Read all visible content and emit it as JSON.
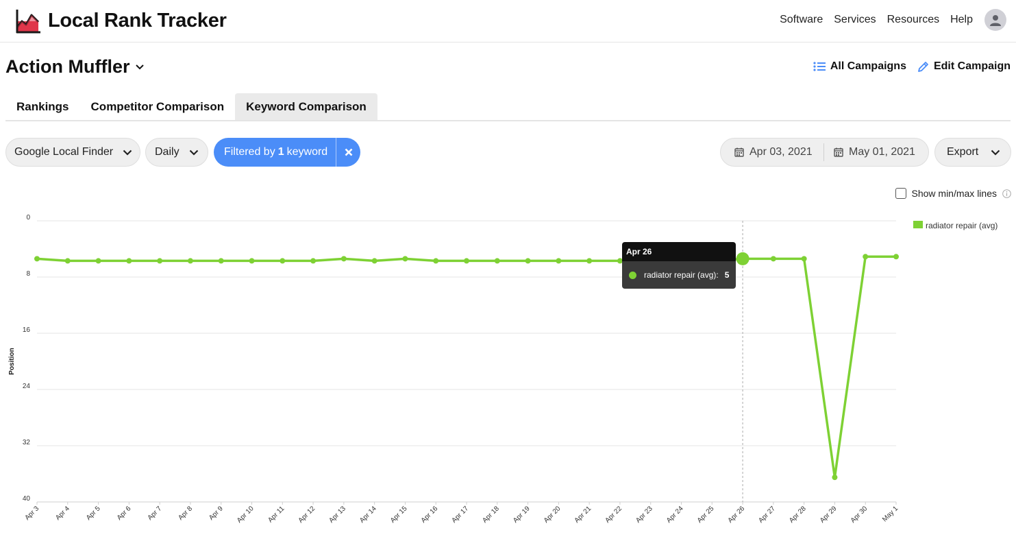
{
  "header": {
    "brand_name": "Local Rank Tracker",
    "nav": [
      {
        "label": "Software"
      },
      {
        "label": "Services"
      },
      {
        "label": "Resources"
      },
      {
        "label": "Help"
      }
    ]
  },
  "campaign": {
    "title": "Action Muffler",
    "all_campaigns_label": "All Campaigns",
    "edit_campaign_label": "Edit Campaign"
  },
  "tabs": [
    {
      "label": "Rankings",
      "active": false
    },
    {
      "label": "Competitor Comparison",
      "active": false
    },
    {
      "label": "Keyword Comparison",
      "active": true
    }
  ],
  "filters": {
    "engine": "Google Local Finder",
    "frequency": "Daily",
    "filter_prefix": "Filtered by",
    "filter_count": "1",
    "filter_suffix": "keyword",
    "date_start": "Apr 03, 2021",
    "date_end": "May 01, 2021",
    "export_label": "Export"
  },
  "options": {
    "show_minmax_label": "Show min/max lines",
    "show_minmax_checked": false
  },
  "colors": {
    "accent": "#4b8df8",
    "series": "#7ed134"
  },
  "tooltip": {
    "date": "Apr 26",
    "series_label": "radiator repair (avg):",
    "value": "5"
  },
  "chart_data": {
    "type": "line",
    "ylabel": "Position",
    "ylim": [
      0,
      40
    ],
    "y_inverted": true,
    "yticks": [
      0,
      8,
      16,
      24,
      32,
      40
    ],
    "legend_position": "top-right",
    "categories": [
      "Apr 3",
      "Apr 4",
      "Apr 5",
      "Apr 6",
      "Apr 7",
      "Apr 8",
      "Apr 9",
      "Apr 10",
      "Apr 11",
      "Apr 12",
      "Apr 13",
      "Apr 14",
      "Apr 15",
      "Apr 16",
      "Apr 17",
      "Apr 18",
      "Apr 19",
      "Apr 20",
      "Apr 21",
      "Apr 22",
      "Apr 23",
      "Apr 24",
      "Apr 25",
      "Apr 26",
      "Apr 27",
      "Apr 28",
      "Apr 29",
      "Apr 30",
      "May 1"
    ],
    "series": [
      {
        "name": "radiator repair (avg)",
        "values": [
          5.4,
          5.7,
          5.7,
          5.7,
          5.7,
          5.7,
          5.7,
          5.7,
          5.7,
          5.7,
          5.4,
          5.7,
          5.4,
          5.7,
          5.7,
          5.7,
          5.7,
          5.7,
          5.7,
          5.7,
          5.7,
          5.7,
          5.7,
          5.4,
          5.4,
          5.4,
          36.5,
          5.1,
          5.1
        ]
      }
    ],
    "highlight_index": 23
  }
}
